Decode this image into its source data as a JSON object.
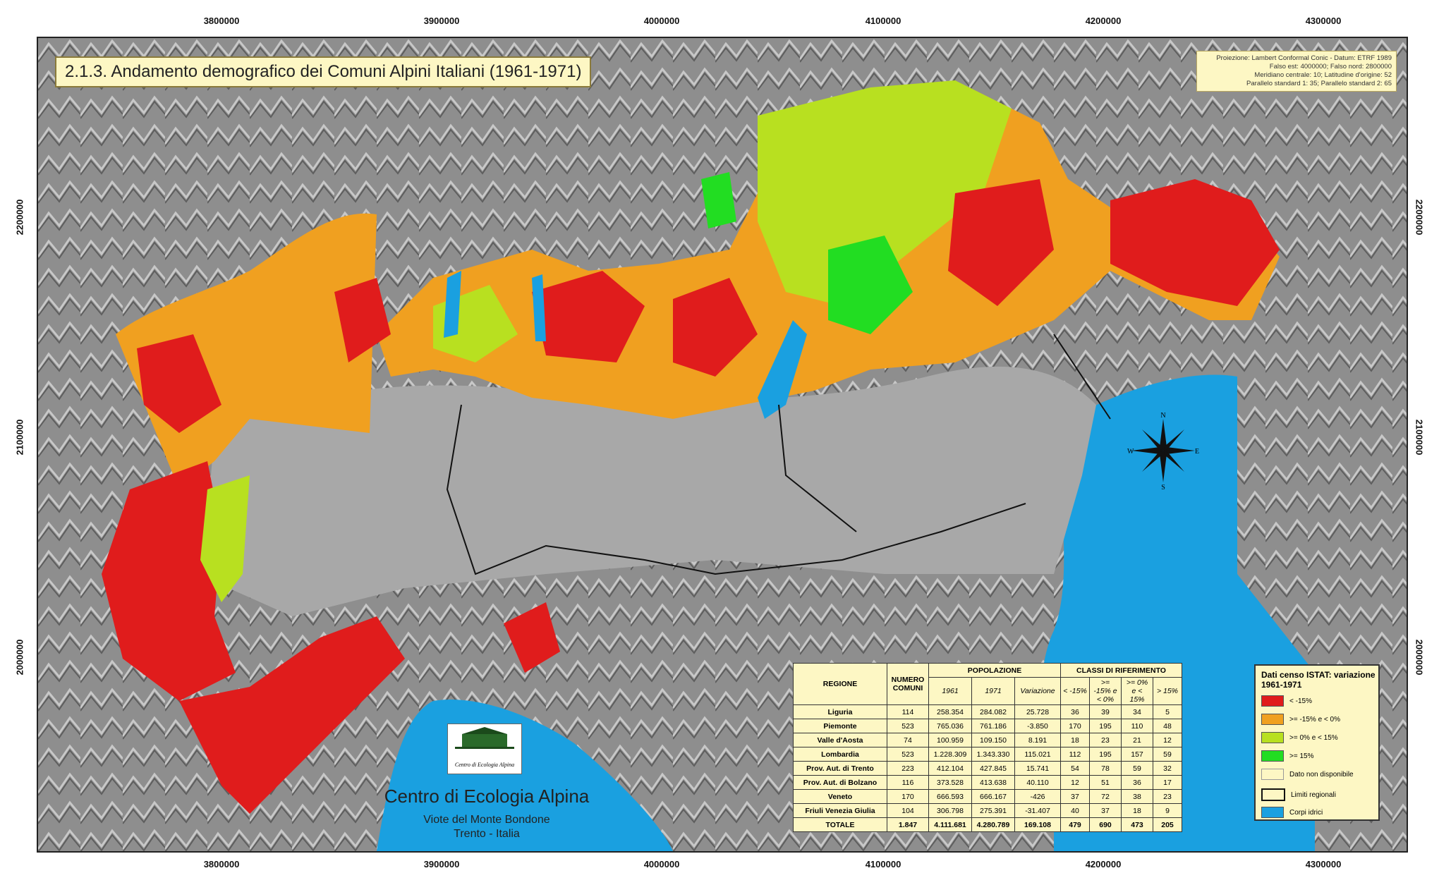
{
  "title": "2.1.3. Andamento demografico dei Comuni Alpini Italiani (1961-1971)",
  "projection": [
    "Proiezione: Lambert Conformal Conic - Datum: ETRF 1989",
    "Falso est: 4000000; Falso nord: 2800000",
    "Meridiano centrale: 10; Latitudine d'origine: 52",
    "Parallelo standard 1: 35; Parallelo standard 2: 65"
  ],
  "x_ticks": [
    "3800000",
    "3900000",
    "4000000",
    "4100000",
    "4200000",
    "4300000"
  ],
  "y_ticks": [
    "2200000",
    "2100000",
    "2000000"
  ],
  "compass": {
    "n": "N",
    "s": "S",
    "e": "E",
    "w": "W"
  },
  "logo_text": "Centro di Ecologia Alpina",
  "org": {
    "name": "Centro di Ecologia Alpina",
    "address1": "Viote del Monte Bondone",
    "address2": "Trento - Italia"
  },
  "table": {
    "headers": {
      "regione": "REGIONE",
      "numero": "NUMERO COMUNI",
      "popolazione": "POPOLAZIONE",
      "classi": "CLASSI DI RIFERIMENTO",
      "y1961": "1961",
      "y1971": "1971",
      "variazione": "Variazione",
      "c1": "< -15%",
      "c2": ">= -15% e < 0%",
      "c3": ">= 0% e < 15%",
      "c4": "> 15%"
    },
    "rows": [
      [
        "Liguria",
        "114",
        "258.354",
        "284.082",
        "25.728",
        "36",
        "39",
        "34",
        "5"
      ],
      [
        "Piemonte",
        "523",
        "765.036",
        "761.186",
        "-3.850",
        "170",
        "195",
        "110",
        "48"
      ],
      [
        "Valle d'Aosta",
        "74",
        "100.959",
        "109.150",
        "8.191",
        "18",
        "23",
        "21",
        "12"
      ],
      [
        "Lombardia",
        "523",
        "1.228.309",
        "1.343.330",
        "115.021",
        "112",
        "195",
        "157",
        "59"
      ],
      [
        "Prov. Aut. di Trento",
        "223",
        "412.104",
        "427.845",
        "15.741",
        "54",
        "78",
        "59",
        "32"
      ],
      [
        "Prov. Aut. di Bolzano",
        "116",
        "373.528",
        "413.638",
        "40.110",
        "12",
        "51",
        "36",
        "17"
      ],
      [
        "Veneto",
        "170",
        "666.593",
        "666.167",
        "-426",
        "37",
        "72",
        "38",
        "23"
      ],
      [
        "Friuli Venezia Giulia",
        "104",
        "306.798",
        "275.391",
        "-31.407",
        "40",
        "37",
        "18",
        "9"
      ]
    ],
    "total": [
      "TOTALE",
      "1.847",
      "4.111.681",
      "4.280.789",
      "169.108",
      "479",
      "690",
      "473",
      "205"
    ]
  },
  "legend": {
    "title": "Dati censo ISTAT: variazione 1961-1971",
    "items": [
      {
        "label": "< -15%",
        "color": "#e01c1c"
      },
      {
        "label": ">= -15% e < 0%",
        "color": "#f0a020"
      },
      {
        "label": ">= 0% e < 15%",
        "color": "#b8e020"
      },
      {
        "label": ">= 15%",
        "color": "#22dd22"
      },
      {
        "label": "Dato non disponibile",
        "color": "#fdf7c4"
      },
      {
        "label": "Limiti regionali",
        "color": "#fdf7c4"
      },
      {
        "label": "Corpi idrici",
        "color": "#1aa0e0"
      }
    ]
  }
}
